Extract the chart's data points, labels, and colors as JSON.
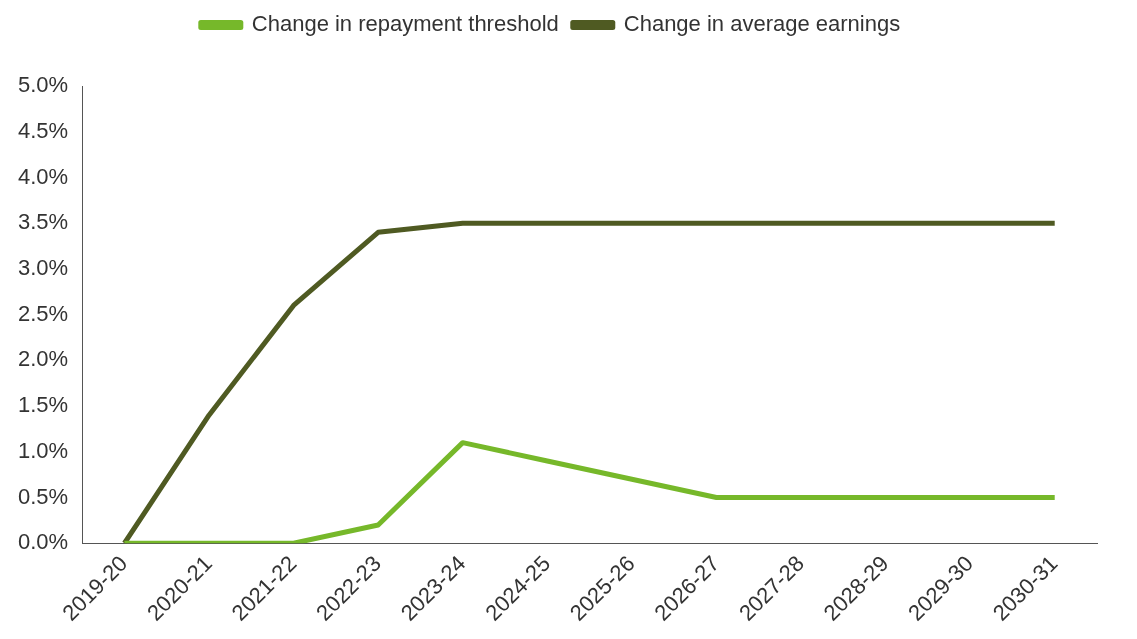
{
  "chart_data": {
    "type": "line",
    "categories": [
      "2019-20",
      "2020-21",
      "2021-22",
      "2022-23",
      "2023-24",
      "2024-25",
      "2025-26",
      "2026-27",
      "2027-28",
      "2028-29",
      "2029-30",
      "2030-31"
    ],
    "series": [
      {
        "name": "Change in repayment threshold",
        "color": "#76b82a",
        "values": [
          0,
          0,
          0,
          0.2,
          1.1,
          0.9,
          0.7,
          0.5,
          0.5,
          0.5,
          0.5,
          0.5
        ]
      },
      {
        "name": "Change in average earnings",
        "color": "#4f5a22",
        "values": [
          0,
          1.4,
          2.6,
          3.4,
          3.5,
          3.5,
          3.5,
          3.5,
          3.5,
          3.5,
          3.5,
          3.5
        ]
      }
    ],
    "ylim": [
      0,
      5
    ],
    "yticks": [
      {
        "value": 0,
        "label": "0.0%"
      },
      {
        "value": 0.5,
        "label": "0.5%"
      },
      {
        "value": 1,
        "label": "1.0%"
      },
      {
        "value": 1.5,
        "label": "1.5%"
      },
      {
        "value": 2,
        "label": "2.0%"
      },
      {
        "value": 2.5,
        "label": "2.5%"
      },
      {
        "value": 3,
        "label": "3.0%"
      },
      {
        "value": 3.5,
        "label": "3.5%"
      },
      {
        "value": 4,
        "label": "4.0%"
      },
      {
        "value": 4.5,
        "label": "4.5%"
      },
      {
        "value": 5,
        "label": "5.0%"
      }
    ],
    "grid": false,
    "legend": "top",
    "marker": "none",
    "line_style": "solid"
  }
}
